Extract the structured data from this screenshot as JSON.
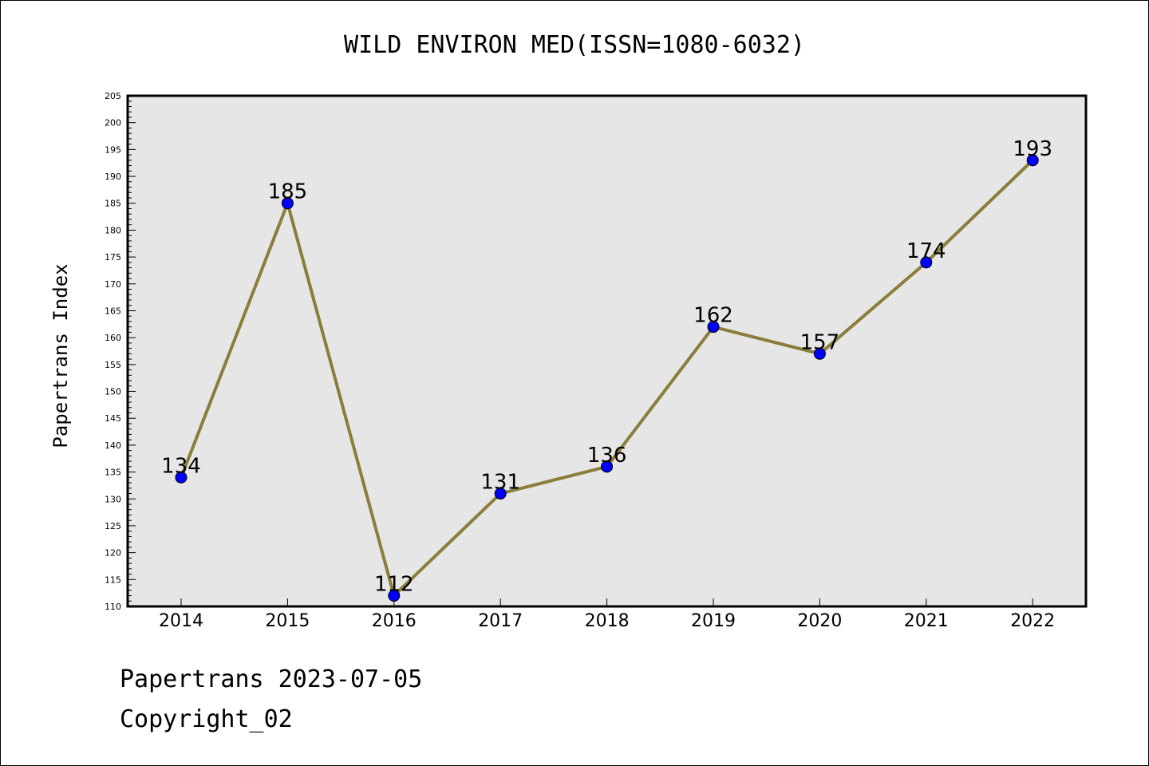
{
  "chart_data": {
    "type": "line",
    "title": "WILD ENVIRON MED(ISSN=1080-6032)",
    "xlabel": "",
    "ylabel": "Papertrans Index",
    "categories": [
      "2014",
      "2015",
      "2016",
      "2017",
      "2018",
      "2019",
      "2020",
      "2021",
      "2022"
    ],
    "series": [
      {
        "values": [
          134,
          185,
          112,
          131,
          136,
          162,
          157,
          174,
          193
        ]
      }
    ],
    "ylim": [
      110,
      205
    ],
    "y_ticks": [
      "110",
      "115",
      "120",
      "125",
      "130",
      "135",
      "140",
      "145",
      "150",
      "155",
      "160",
      "165",
      "170",
      "175",
      "180",
      "185",
      "190",
      "195",
      "200",
      "205"
    ],
    "y_tick_values": [
      110,
      115,
      120,
      125,
      130,
      135,
      140,
      145,
      150,
      155,
      160,
      165,
      170,
      175,
      180,
      185,
      190,
      195,
      200,
      205
    ],
    "grid": false,
    "data_labels": true,
    "colors": {
      "line": "#8b7d3a",
      "marker": "#0000ff",
      "plot_bg": "#e6e6e6"
    }
  },
  "footer": {
    "line1": "Papertrans 2023-07-05",
    "line2": "Copyright_02"
  }
}
